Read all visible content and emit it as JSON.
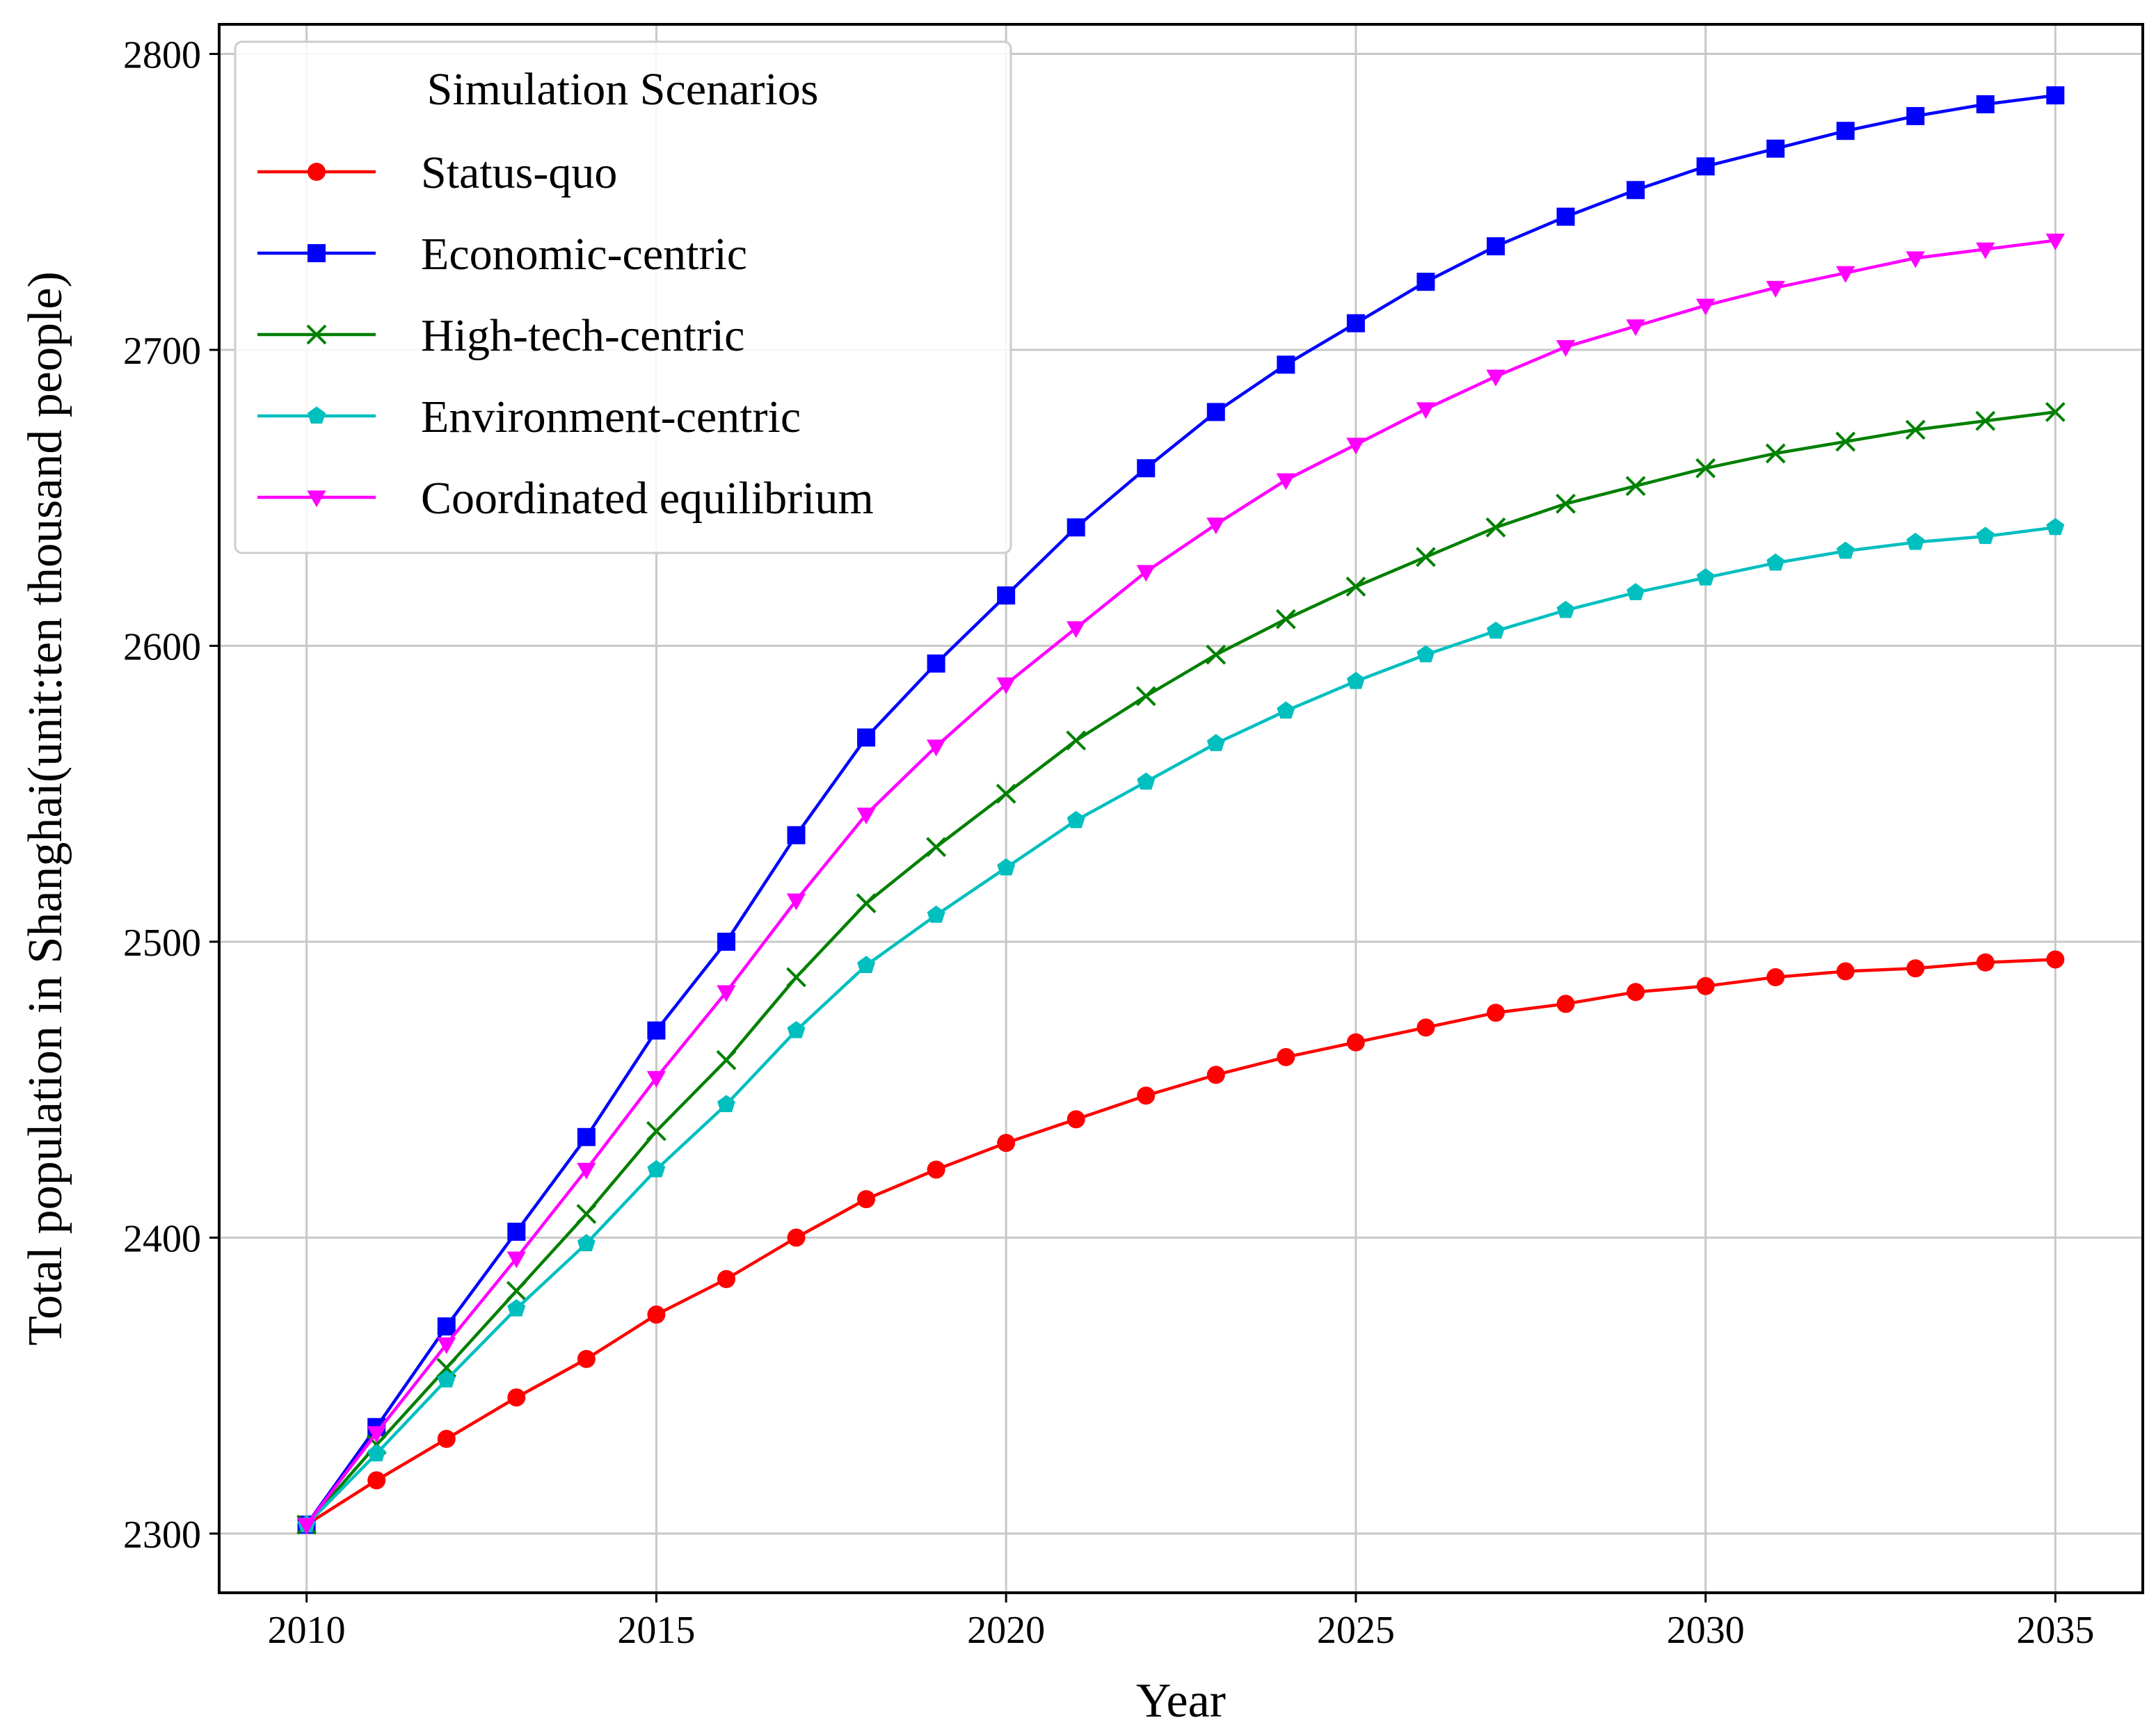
{
  "chart_data": {
    "type": "line",
    "title": "",
    "xlabel": "Year",
    "ylabel": "Total population in Shanghai(unit:ten thousand people)",
    "xlim": [
      2008.75,
      2036.25
    ],
    "ylim": [
      2280,
      2810
    ],
    "xticks": [
      2010,
      2015,
      2020,
      2025,
      2030,
      2035
    ],
    "yticks": [
      2300,
      2400,
      2500,
      2600,
      2700,
      2800
    ],
    "grid": true,
    "legend": {
      "title": "Simulation Scenarios",
      "position": "top-left"
    },
    "x": [
      2010,
      2011,
      2012,
      2013,
      2014,
      2015,
      2016,
      2017,
      2018,
      2019,
      2020,
      2021,
      2022,
      2023,
      2024,
      2025,
      2026,
      2027,
      2028,
      2029,
      2030,
      2031,
      2032,
      2033,
      2034,
      2035
    ],
    "series": [
      {
        "name": "Status-quo",
        "color": "#ff0000",
        "marker": "circle",
        "values": [
          2303,
          2318,
          2332,
          2346,
          2359,
          2374,
          2386,
          2400,
          2413,
          2423,
          2432,
          2440,
          2448,
          2455,
          2461,
          2466,
          2471,
          2476,
          2479,
          2483,
          2485,
          2488,
          2490,
          2491,
          2493,
          2494
        ]
      },
      {
        "name": "Economic-centric",
        "color": "#0000ff",
        "marker": "square",
        "values": [
          2303,
          2336,
          2370,
          2402,
          2434,
          2470,
          2500,
          2536,
          2569,
          2594,
          2617,
          2640,
          2660,
          2679,
          2695,
          2709,
          2723,
          2735,
          2745,
          2754,
          2762,
          2768,
          2774,
          2779,
          2783,
          2786
        ]
      },
      {
        "name": "High-tech-centric",
        "color": "#008000",
        "marker": "x",
        "values": [
          2303,
          2330,
          2356,
          2382,
          2408,
          2436,
          2460,
          2488,
          2513,
          2532,
          2550,
          2568,
          2583,
          2597,
          2609,
          2620,
          2630,
          2640,
          2648,
          2654,
          2660,
          2665,
          2669,
          2673,
          2676,
          2679
        ]
      },
      {
        "name": "Environment-centric",
        "color": "#00bfbf",
        "marker": "pentagon",
        "values": [
          2303,
          2327,
          2352,
          2376,
          2398,
          2423,
          2445,
          2470,
          2492,
          2509,
          2525,
          2541,
          2554,
          2567,
          2578,
          2588,
          2597,
          2605,
          2612,
          2618,
          2623,
          2628,
          2632,
          2635,
          2637,
          2640
        ]
      },
      {
        "name": "Coordinated equilibrium",
        "color": "#ff00ff",
        "marker": "triangle-down",
        "values": [
          2303,
          2334,
          2364,
          2393,
          2423,
          2454,
          2483,
          2514,
          2543,
          2566,
          2587,
          2606,
          2625,
          2641,
          2656,
          2668,
          2680,
          2691,
          2701,
          2708,
          2715,
          2721,
          2726,
          2731,
          2734,
          2737
        ]
      }
    ]
  }
}
